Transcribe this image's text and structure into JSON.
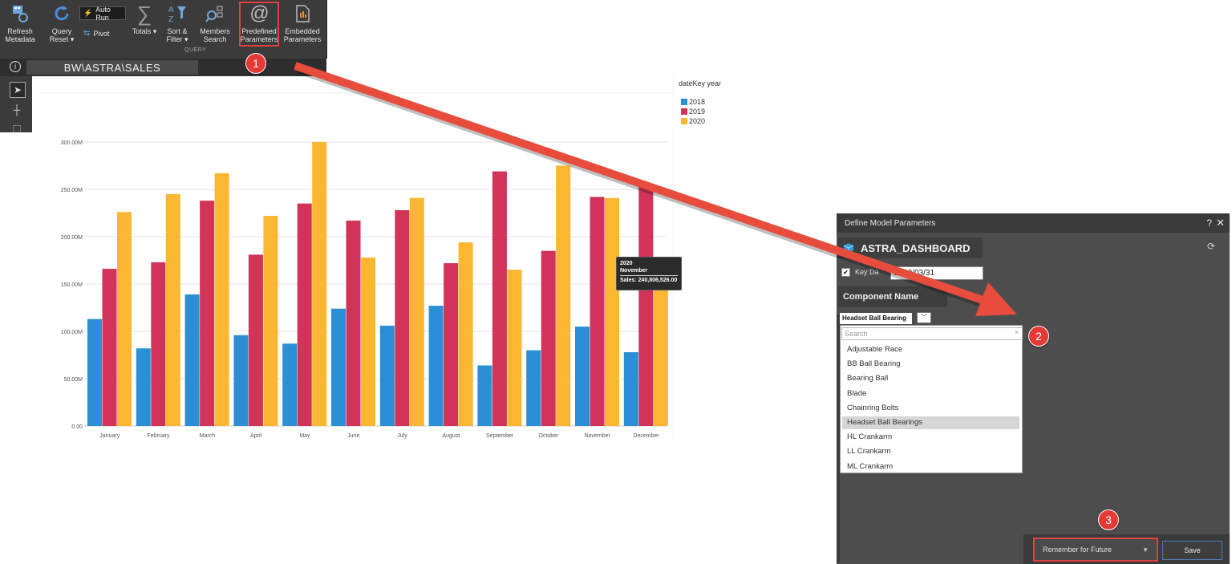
{
  "toolbar": {
    "refresh_metadata": "Refresh\nMetadata",
    "query_reset": "Query\nReset ▾",
    "auto_run": "Auto Run",
    "pivot": "Pivot",
    "totals": "Totals ▾",
    "sort_filter": "Sort &\nFilter ▾",
    "members_search": "Members\nSearch",
    "predefined_parameters": "Predefined\nParameters",
    "embedded_parameters": "Embedded\nParameters",
    "group_label": "QUERY"
  },
  "titlebar": {
    "info": "i",
    "title": "BW\\ASTRA\\SALES"
  },
  "legend": {
    "title": "dateKey year",
    "items": [
      {
        "label": "2018",
        "color": "#2a8fd4"
      },
      {
        "label": "2019",
        "color": "#d13359"
      },
      {
        "label": "2020",
        "color": "#fbb731"
      }
    ]
  },
  "chart_data": {
    "type": "bar",
    "categories": [
      "January",
      "February",
      "March",
      "April",
      "May",
      "June",
      "July",
      "August",
      "September",
      "October",
      "November",
      "December"
    ],
    "series": [
      {
        "name": "2018",
        "values": [
          113,
          82,
          139,
          96,
          87,
          124,
          106,
          127,
          64,
          80,
          105,
          78
        ]
      },
      {
        "name": "2019",
        "values": [
          166,
          173,
          238,
          181,
          235,
          217,
          228,
          172,
          269,
          185,
          242,
          255
        ]
      },
      {
        "name": "2020",
        "values": [
          226,
          245,
          267,
          222,
          300,
          178,
          241,
          194,
          165,
          275,
          240.8,
          166
        ]
      }
    ],
    "ylim": [
      0,
      300
    ],
    "yticks": [
      "0.00",
      "50.00M",
      "100.00M",
      "150.00M",
      "200.00M",
      "250.00M",
      "300.00M"
    ],
    "grid": true
  },
  "tooltip": {
    "year": "2020",
    "month": "November",
    "value": "Sales: 240,806,526.00"
  },
  "dialog": {
    "title": "Define Model Parameters",
    "help": "?",
    "close": "✕",
    "model": "ASTRA_DASHBOARD",
    "key_label": "Key Da",
    "key_value": "2020/03/31",
    "component_label": "Component Name",
    "selected": "Headset Ball Bearing",
    "search_placeholder": "Search",
    "options": [
      "Adjustable Race",
      "BB Ball Bearing",
      "Bearing Ball",
      "Blade",
      "Chainring Bolts",
      "Headset Ball Bearings",
      "HL Crankarm",
      "LL Crankarm",
      "ML Crankarm"
    ],
    "highlighted_index": 5,
    "remember": "Remember for Future",
    "save": "Save"
  },
  "badges": [
    "1",
    "2",
    "3"
  ]
}
